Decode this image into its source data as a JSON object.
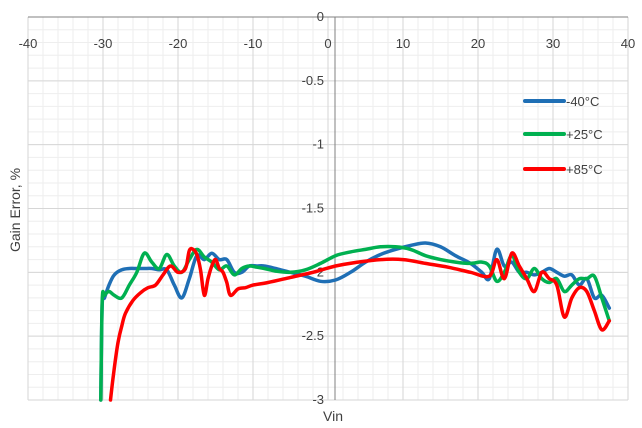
{
  "chart_data": {
    "type": "line",
    "title": "",
    "xlabel": "Vin",
    "ylabel": "Gain Error, %",
    "xlim": [
      -40,
      40
    ],
    "ylim": [
      -3,
      0
    ],
    "x_ticks": [
      -40,
      -30,
      -20,
      -10,
      0,
      10,
      20,
      30,
      40
    ],
    "y_ticks": [
      0,
      -0.5,
      -1,
      -1.5,
      -2,
      -2.5,
      -3
    ],
    "grid": true,
    "legend_position": "right",
    "series": [
      {
        "name": "-40°C",
        "color": "#1F6FB5",
        "x": [
          -30.3,
          -30.1,
          -29.8,
          -29.2,
          -28.5,
          -27.5,
          -26.5,
          -25.5,
          -24.5,
          -23.5,
          -22.5,
          -21.5,
          -20.5,
          -19.5,
          -18.5,
          -17.5,
          -16.5,
          -15.5,
          -14.5,
          -13.5,
          -12.5,
          -11.5,
          -10.5,
          -9.5,
          -8.5,
          -7,
          -5,
          -3,
          -1,
          1,
          3,
          5,
          7,
          9,
          11,
          13,
          15,
          17,
          19,
          20.5,
          21.5,
          22.5,
          23.5,
          24.5,
          25.5,
          26.5,
          27.5,
          28.5,
          29.5,
          30.5,
          31.5,
          32.5,
          33.5,
          34.5,
          35.5,
          36.5,
          37.5
        ],
        "y": [
          -3,
          -2.25,
          -2.2,
          -2.1,
          -2.02,
          -1.98,
          -1.97,
          -1.97,
          -1.97,
          -1.97,
          -1.98,
          -1.98,
          -2.1,
          -2.2,
          -2.05,
          -1.87,
          -1.9,
          -1.85,
          -1.9,
          -1.9,
          -2.0,
          -2.0,
          -1.95,
          -1.95,
          -1.95,
          -1.97,
          -2.0,
          -2.03,
          -2.07,
          -2.06,
          -2.0,
          -1.92,
          -1.86,
          -1.82,
          -1.79,
          -1.77,
          -1.8,
          -1.87,
          -1.93,
          -2.0,
          -2.05,
          -1.82,
          -1.95,
          -1.92,
          -2.0,
          -2.0,
          -2.02,
          -2.0,
          -1.97,
          -2.0,
          -2.03,
          -2.02,
          -2.1,
          -2.05,
          -2.2,
          -2.18,
          -2.28
        ]
      },
      {
        "name": "+25°C",
        "color": "#00B050",
        "x": [
          -30.3,
          -30.1,
          -29.8,
          -29.2,
          -28.5,
          -27.5,
          -26.5,
          -25.5,
          -24.5,
          -23.5,
          -22.5,
          -21.5,
          -20.5,
          -19.5,
          -18.5,
          -17.5,
          -16.5,
          -15.5,
          -14.5,
          -13.5,
          -12.5,
          -11.5,
          -10.5,
          -9.5,
          -8.5,
          -7,
          -5,
          -3,
          -1,
          1,
          3,
          5,
          7,
          9,
          11,
          13,
          15,
          17,
          19,
          20.5,
          21.5,
          22.5,
          23.5,
          24.5,
          25.5,
          26.5,
          27.5,
          28.5,
          29.5,
          30.5,
          31.5,
          32.5,
          33.5,
          34.5,
          35.5,
          36.5,
          37.5
        ],
        "y": [
          -3,
          -2.22,
          -2.18,
          -2.15,
          -2.18,
          -2.2,
          -2.1,
          -2.0,
          -1.85,
          -1.92,
          -1.97,
          -1.86,
          -1.95,
          -2.0,
          -1.9,
          -1.82,
          -1.88,
          -1.92,
          -1.98,
          -1.95,
          -2.02,
          -1.97,
          -1.95,
          -1.96,
          -1.97,
          -1.99,
          -2.0,
          -1.98,
          -1.93,
          -1.87,
          -1.84,
          -1.82,
          -1.8,
          -1.8,
          -1.82,
          -1.87,
          -1.9,
          -1.92,
          -1.93,
          -1.92,
          -1.95,
          -2.07,
          -2.0,
          -1.87,
          -2.0,
          -2.05,
          -1.97,
          -2.05,
          -2.08,
          -2.05,
          -2.15,
          -2.1,
          -2.05,
          -2.05,
          -2.03,
          -2.2,
          -2.38
        ]
      },
      {
        "name": "+85°C",
        "color": "#FF0000",
        "x": [
          -29,
          -28.6,
          -28,
          -27.5,
          -27,
          -26,
          -25,
          -24,
          -23,
          -22,
          -21,
          -20,
          -19,
          -18.5,
          -18,
          -17.5,
          -17,
          -16.5,
          -16,
          -15.5,
          -15,
          -14.5,
          -14,
          -13.5,
          -13,
          -12,
          -11,
          -10,
          -8,
          -5,
          -2,
          1,
          4,
          7,
          10,
          13,
          16,
          19,
          21.5,
          22.5,
          23.5,
          24.5,
          25.5,
          26.5,
          27.5,
          28.5,
          29.5,
          30.5,
          31.5,
          32.5,
          33.5,
          34.5,
          35.5,
          36.5,
          37.5
        ],
        "y": [
          -3,
          -2.8,
          -2.55,
          -2.42,
          -2.32,
          -2.22,
          -2.16,
          -2.12,
          -2.1,
          -2.02,
          -1.95,
          -2.0,
          -1.97,
          -1.83,
          -1.82,
          -1.86,
          -1.98,
          -2.18,
          -2.05,
          -1.95,
          -1.9,
          -1.97,
          -2.0,
          -2.08,
          -2.18,
          -2.13,
          -2.12,
          -2.1,
          -2.08,
          -2.04,
          -2.0,
          -1.95,
          -1.92,
          -1.9,
          -1.9,
          -1.93,
          -1.96,
          -2.0,
          -2.03,
          -1.9,
          -2.05,
          -1.85,
          -1.95,
          -2.05,
          -2.15,
          -2.0,
          -2.05,
          -2.1,
          -2.35,
          -2.2,
          -2.12,
          -2.15,
          -2.3,
          -2.45,
          -2.38
        ]
      }
    ]
  }
}
